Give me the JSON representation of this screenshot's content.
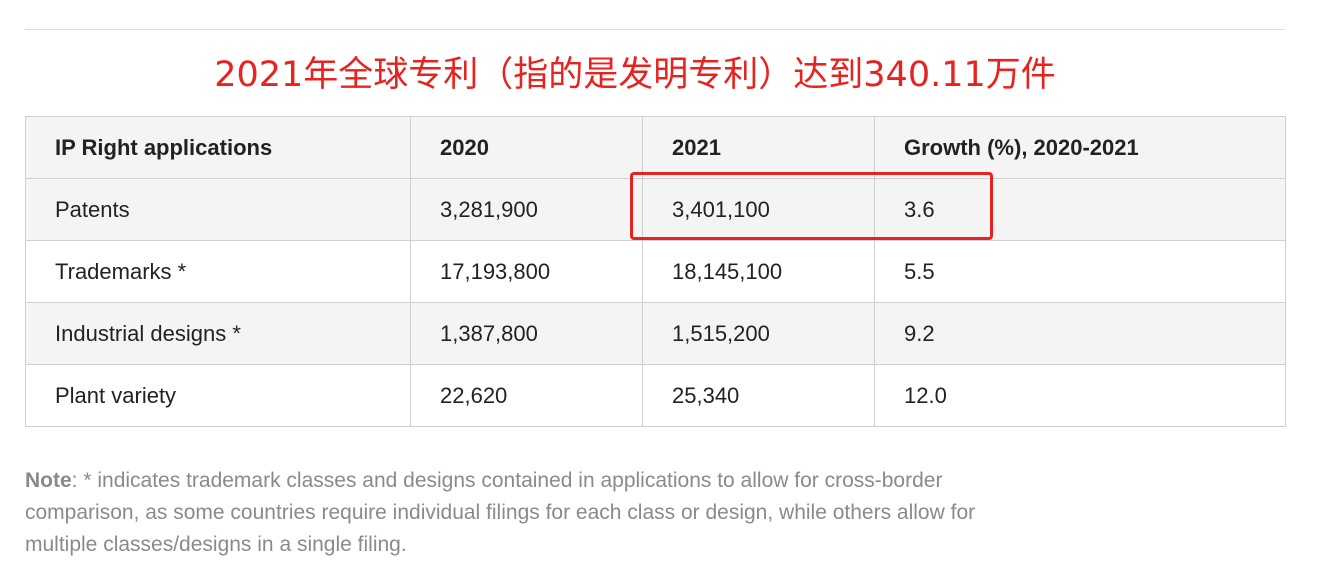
{
  "annotation": {
    "title": "2021年全球专利（指的是发明专利）达到340.11万件",
    "highlight_color": "#e8231f"
  },
  "table": {
    "headers": [
      "IP Right applications",
      "2020",
      "2021",
      "Growth (%), 2020-2021"
    ],
    "rows": [
      [
        "Patents",
        "3,281,900",
        "3,401,100",
        "3.6"
      ],
      [
        "Trademarks *",
        "17,193,800",
        "18,145,100",
        "5.5"
      ],
      [
        "Industrial designs *",
        "1,387,800",
        "1,515,200",
        "9.2"
      ],
      [
        "Plant variety",
        "22,620",
        "25,340",
        "12.0"
      ]
    ]
  },
  "note": {
    "label": "Note",
    "text": ": * indicates trademark classes and designs contained in applications to allow for cross-border comparison, as some countries require individual filings for each class or design, while others allow for multiple classes/designs in a single filing."
  }
}
